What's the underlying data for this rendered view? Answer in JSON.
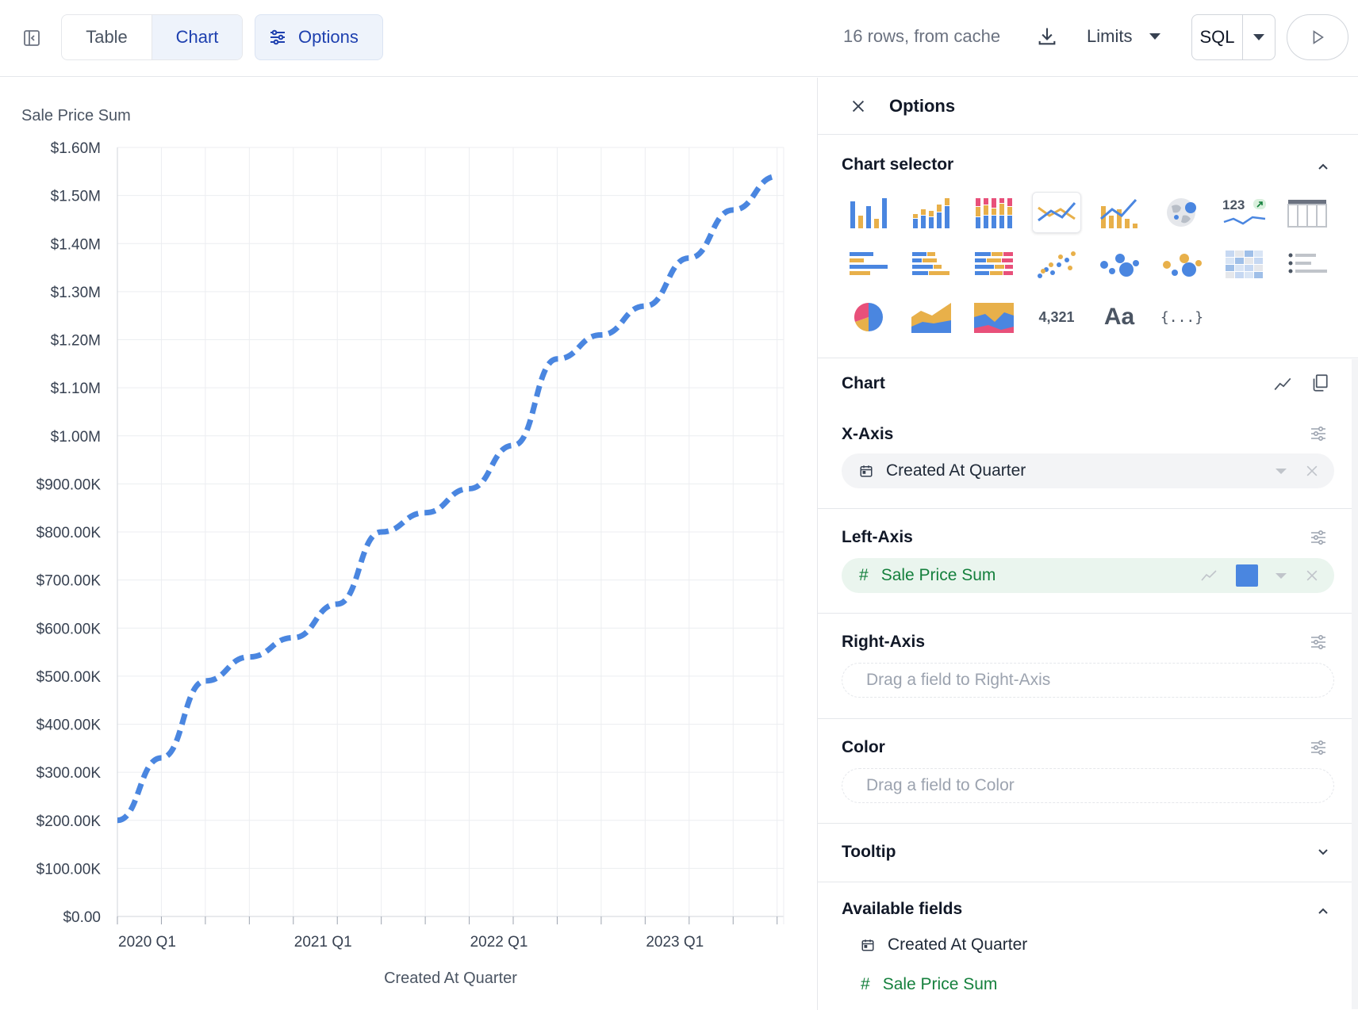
{
  "toolbar": {
    "tab_table": "Table",
    "tab_chart": "Chart",
    "options_label": "Options",
    "status": "16 rows, from cache",
    "limits_label": "Limits",
    "sql_label": "SQL"
  },
  "panel": {
    "title": "Options",
    "chart_selector_title": "Chart selector",
    "chart_types": [
      "bar",
      "stacked-bar",
      "percent-bar",
      "line",
      "combo",
      "map",
      "kpi-trend",
      "table",
      "horizontal-bar",
      "stacked-horizontal-bar",
      "percent-horizontal-bar",
      "scatter",
      "bubble",
      "bubble-colored",
      "heatmap",
      "list",
      "pie",
      "area",
      "stacked-area",
      "number",
      "text",
      "json"
    ],
    "selected_chart_type": "line",
    "number_label": "4,321",
    "text_label": "Aa",
    "json_label": "{...}",
    "kpi_label": "123",
    "chart_section_title": "Chart",
    "x_axis": {
      "title": "X-Axis",
      "field": "Created At Quarter"
    },
    "left_axis": {
      "title": "Left-Axis",
      "field_icon": "#",
      "field": "Sale Price Sum",
      "color": "#4a86e0"
    },
    "right_axis": {
      "title": "Right-Axis",
      "placeholder": "Drag a field to Right-Axis"
    },
    "color": {
      "title": "Color",
      "placeholder": "Drag a field to Color"
    },
    "tooltip_title": "Tooltip",
    "available_fields_title": "Available fields",
    "available_fields": [
      {
        "icon": "calendar",
        "name": "Created At Quarter"
      },
      {
        "icon": "#",
        "name": "Sale Price Sum"
      }
    ]
  },
  "chart_data": {
    "type": "line",
    "title": "",
    "ylabel": "Sale Price Sum",
    "xlabel": "Created At Quarter",
    "ylim": [
      0,
      1600000
    ],
    "yticks": [
      "$0.00",
      "$100.00K",
      "$200.00K",
      "$300.00K",
      "$400.00K",
      "$500.00K",
      "$600.00K",
      "$700.00K",
      "$800.00K",
      "$900.00K",
      "$1.00M",
      "$1.10M",
      "$1.20M",
      "$1.30M",
      "$1.40M",
      "$1.50M",
      "$1.60M"
    ],
    "x": [
      "2020 Q1",
      "2020 Q2",
      "2020 Q3",
      "2020 Q4",
      "2021 Q1",
      "2021 Q2",
      "2021 Q3",
      "2021 Q4",
      "2022 Q1",
      "2022 Q2",
      "2022 Q3",
      "2022 Q4",
      "2023 Q1",
      "2023 Q2",
      "2023 Q3",
      "2023 Q4"
    ],
    "xtick_labels": [
      "2020 Q1",
      "2021 Q1",
      "2022 Q1",
      "2023 Q1"
    ],
    "series": [
      {
        "name": "Sale Price Sum",
        "color": "#4a86e0",
        "line_style": "dashed",
        "values": [
          200000,
          330000,
          490000,
          540000,
          580000,
          650000,
          800000,
          840000,
          890000,
          980000,
          1160000,
          1210000,
          1270000,
          1370000,
          1470000,
          1540000
        ]
      }
    ],
    "grid": true
  }
}
